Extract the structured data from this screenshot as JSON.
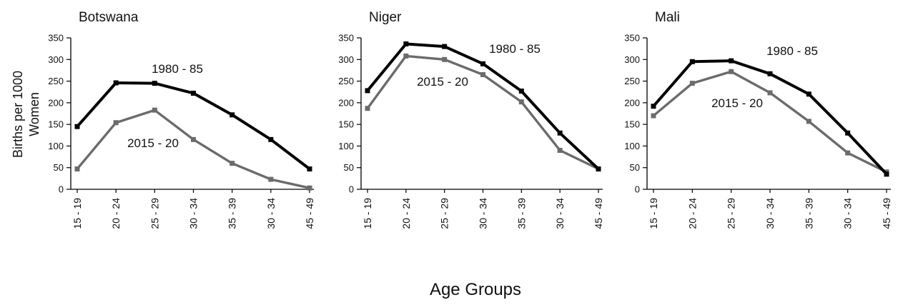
{
  "ylabel": "Births  per  1000\nWomen",
  "xlabel": "Age Groups",
  "colors": {
    "series_1980": "#000000",
    "series_2015": "#6b6b6b",
    "axis": "#000000"
  },
  "chart_data": [
    {
      "type": "line",
      "title": "Botswana",
      "categories": [
        "15 - 19",
        "20 - 24",
        "25 - 29",
        "30 - 34",
        "35 - 39",
        "30 - 34",
        "45 - 49"
      ],
      "ylim": [
        0,
        350
      ],
      "yticks": [
        "0",
        "50",
        "100",
        "150",
        "200",
        "250",
        "300",
        "350"
      ],
      "series": [
        {
          "name": "1980 - 85",
          "values": [
            145,
            246,
            245,
            222,
            172,
            115,
            47
          ]
        },
        {
          "name": "2015 - 20",
          "values": [
            47,
            154,
            183,
            115,
            60,
            23,
            3
          ]
        }
      ]
    },
    {
      "type": "line",
      "title": "Niger",
      "categories": [
        "15 - 19",
        "20 - 24",
        "25 - 29",
        "30 - 34",
        "35 - 39",
        "30 - 34",
        "45 - 49"
      ],
      "ylim": [
        0,
        350
      ],
      "yticks": [
        "0",
        "50",
        "100",
        "150",
        "200",
        "250",
        "300",
        "350"
      ],
      "series": [
        {
          "name": "1980 - 85",
          "values": [
            228,
            336,
            330,
            290,
            227,
            130,
            47
          ]
        },
        {
          "name": "2015 - 20",
          "values": [
            187,
            308,
            300,
            265,
            202,
            90,
            47
          ]
        }
      ]
    },
    {
      "type": "line",
      "title": "Mali",
      "categories": [
        "15 - 19",
        "20 - 24",
        "25 - 29",
        "30 - 34",
        "35 - 39",
        "30 - 34",
        "45 - 49"
      ],
      "ylim": [
        0,
        350
      ],
      "yticks": [
        "0",
        "50",
        "100",
        "150",
        "200",
        "250",
        "300",
        "350"
      ],
      "series": [
        {
          "name": "1980 - 85",
          "values": [
            192,
            295,
            297,
            267,
            220,
            130,
            35
          ]
        },
        {
          "name": "2015 - 20",
          "values": [
            170,
            245,
            272,
            223,
            157,
            84,
            40
          ]
        }
      ]
    }
  ]
}
